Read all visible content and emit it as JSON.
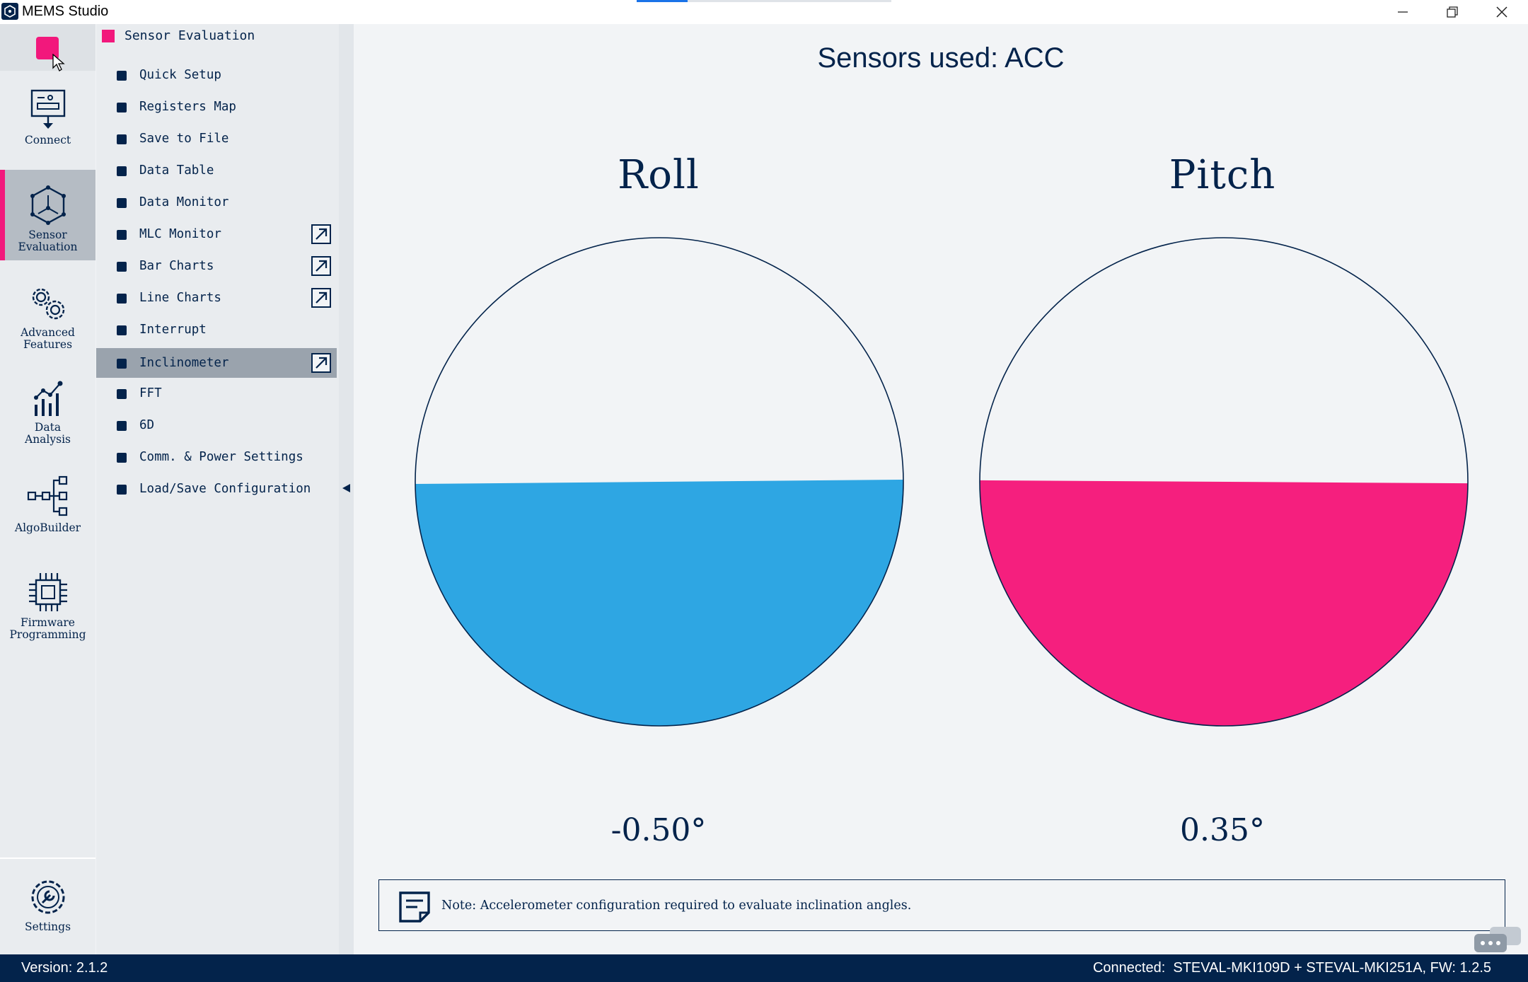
{
  "window": {
    "title": "MEMS Studio",
    "title_progress_fraction": 0.2
  },
  "nav": {
    "items": [
      {
        "label": "Connect",
        "icon": "connect-icon"
      },
      {
        "label": "Sensor\nEvaluation",
        "icon": "sensor-evaluation-icon",
        "active": true
      },
      {
        "label": "Advanced\nFeatures",
        "icon": "gears-icon"
      },
      {
        "label": "Data\nAnalysis",
        "icon": "data-analysis-icon"
      },
      {
        "label": "AlgoBuilder",
        "icon": "algobuilder-icon"
      },
      {
        "label": "Firmware\nProgramming",
        "icon": "chip-icon"
      }
    ],
    "settings_label": "Settings"
  },
  "submenu": {
    "header": "Sensor Evaluation",
    "items": [
      {
        "label": "Quick Setup"
      },
      {
        "label": "Registers Map"
      },
      {
        "label": "Save to File"
      },
      {
        "label": "Data Table"
      },
      {
        "label": "Data Monitor"
      },
      {
        "label": "MLC Monitor",
        "popout": true
      },
      {
        "label": "Bar Charts",
        "popout": true
      },
      {
        "label": "Line Charts",
        "popout": true
      },
      {
        "label": "Interrupt"
      },
      {
        "label": "Inclinometer",
        "popout": true,
        "active": true
      },
      {
        "label": "FFT"
      },
      {
        "label": "6D"
      },
      {
        "label": "Comm. & Power Settings"
      },
      {
        "label": "Load/Save Configuration"
      }
    ]
  },
  "main": {
    "sensors_used": "Sensors used: ACC",
    "roll": {
      "title": "Roll",
      "value_text": "-0.50°",
      "angle_deg": -0.5,
      "color": "#2ea6e3"
    },
    "pitch": {
      "title": "Pitch",
      "value_text": "0.35°",
      "angle_deg": 0.35,
      "color": "#f51f7e"
    },
    "note": "Note: Accelerometer configuration required to evaluate inclination angles."
  },
  "status": {
    "version": "Version: 2.1.2",
    "connection": "Connected:  STEVAL-MKI109D + STEVAL-MKI251A, FW: 1.2.5"
  },
  "colors": {
    "accent": "#f2187c",
    "navy": "#03234b"
  }
}
